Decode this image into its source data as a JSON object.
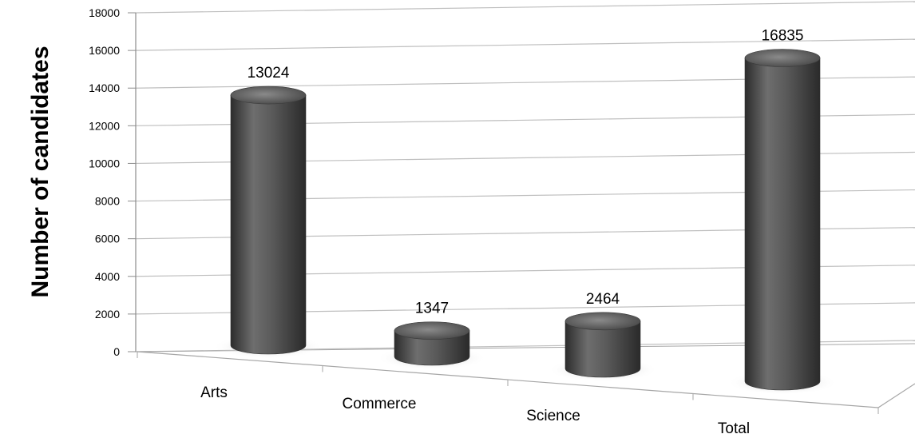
{
  "chart_data": {
    "type": "bar",
    "style": "3d-cylinder",
    "categories": [
      "Arts",
      "Commerce",
      "Science",
      "Total"
    ],
    "values": [
      13024,
      1347,
      2464,
      16835
    ],
    "data_labels": [
      "13024",
      "1347",
      "2464",
      "16835"
    ],
    "title": "",
    "xlabel": "",
    "ylabel": "Number of candidates",
    "ylim": [
      0,
      18000
    ],
    "yticks": [
      0,
      2000,
      4000,
      6000,
      8000,
      10000,
      12000,
      14000,
      16000,
      18000
    ],
    "ytick_labels": [
      "0",
      "2000",
      "4000",
      "6000",
      "8000",
      "10000",
      "12000",
      "14000",
      "16000",
      "18000"
    ],
    "grid": true,
    "legend": "none",
    "colors": {
      "bar": "#555555",
      "grid": "#bfbfbf"
    }
  }
}
